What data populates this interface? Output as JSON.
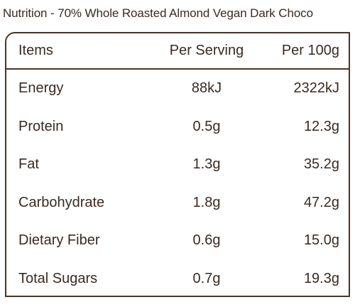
{
  "title": "Nutrition - 70% Whole Roasted Almond Vegan Dark Choco",
  "table": {
    "header": [
      "Items",
      "Per Serving",
      "Per 100g"
    ],
    "rows": [
      [
        "Energy",
        "88kJ",
        "2322kJ"
      ],
      [
        "Protein",
        "0.5g",
        "12.3g"
      ],
      [
        "Fat",
        "1.3g",
        "35.2g"
      ],
      [
        "Carbohydrate",
        "1.8g",
        "47.2g"
      ],
      [
        "Dietary Fiber",
        "0.6g",
        "15.0g"
      ],
      [
        "Total Sugars",
        "0.7g",
        "19.3g"
      ]
    ]
  }
}
